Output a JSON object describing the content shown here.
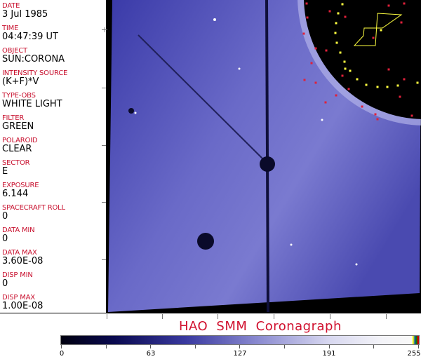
{
  "header_fields": [
    {
      "label": "DATE",
      "value": "3 Jul 1985"
    },
    {
      "label": "TIME",
      "value": "04:47:39 UT"
    },
    {
      "label": "OBJECT",
      "value": "SUN:CORONA"
    },
    {
      "label": "INTENSITY SOURCE",
      "value": "(K+F)*V"
    },
    {
      "label": "TYPE-OBS",
      "value": "WHITE LIGHT"
    },
    {
      "label": "FILTER",
      "value": "GREEN"
    },
    {
      "label": "POLAROID",
      "value": "CLEAR"
    },
    {
      "label": "SECTOR",
      "value": "E"
    },
    {
      "label": "EXPOSURE",
      "value": "6.144"
    },
    {
      "label": "SPACECRAFT ROLL",
      "value": "0"
    },
    {
      "label": "DATA MIN",
      "value": "0"
    },
    {
      "label": "DATA MAX",
      "value": "3.60E-08"
    },
    {
      "label": "DISP MIN",
      "value": "0"
    },
    {
      "label": "DISP MAX",
      "value": "1.00E-08"
    }
  ],
  "title": "HAO  SMM Coronagraph",
  "colorbar": {
    "ticks": [
      "0",
      "63",
      "127",
      "191",
      "255"
    ],
    "colors": [
      "#000010",
      "#3a3aa0",
      "#d8d8f0",
      "#ffff00",
      "#0050c0",
      "#008800",
      "#cc0000"
    ]
  },
  "colors": {
    "label": "#c8102e",
    "title": "#d0102e",
    "overlay_red": "#e0203a",
    "overlay_yellow": "#ffff40"
  }
}
